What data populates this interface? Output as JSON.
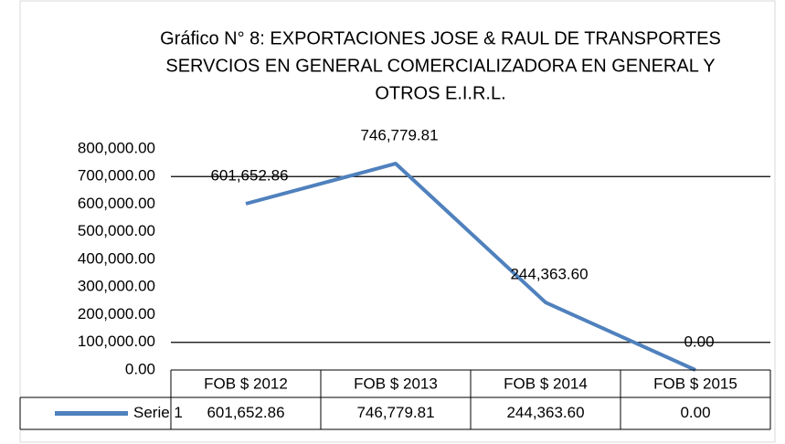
{
  "chart_data": {
    "type": "line",
    "title": [
      "Gráfico N° 8: EXPORTACIONES JOSE & RAUL DE TRANSPORTES",
      "SERVCIOS EN GENERAL COMERCIALIZADORA EN GENERAL Y",
      "OTROS E.I.R.L."
    ],
    "categories": [
      "FOB $ 2012",
      "FOB $ 2013",
      "FOB $ 2014",
      "FOB $ 2015"
    ],
    "series": [
      {
        "name": "Serie 1",
        "color": "#4f81bd",
        "values": [
          601652.86,
          746779.81,
          244363.6,
          0
        ],
        "value_labels": [
          "601,652.86",
          "746,779.81",
          "244,363.60",
          "0.00"
        ]
      }
    ],
    "ylim": [
      0,
      800000
    ],
    "yticks": [
      {
        "value": 0,
        "label": "0.00"
      },
      {
        "value": 100000,
        "label": "100,000.00"
      },
      {
        "value": 200000,
        "label": "200,000.00"
      },
      {
        "value": 300000,
        "label": "300,000.00"
      },
      {
        "value": 400000,
        "label": "400,000.00"
      },
      {
        "value": 500000,
        "label": "500,000.00"
      },
      {
        "value": 600000,
        "label": "600,000.00"
      },
      {
        "value": 700000,
        "label": "700,000.00"
      },
      {
        "value": 800000,
        "label": "800,000.00"
      }
    ],
    "grid_lines": [
      700000,
      100000
    ],
    "data_table": true
  }
}
